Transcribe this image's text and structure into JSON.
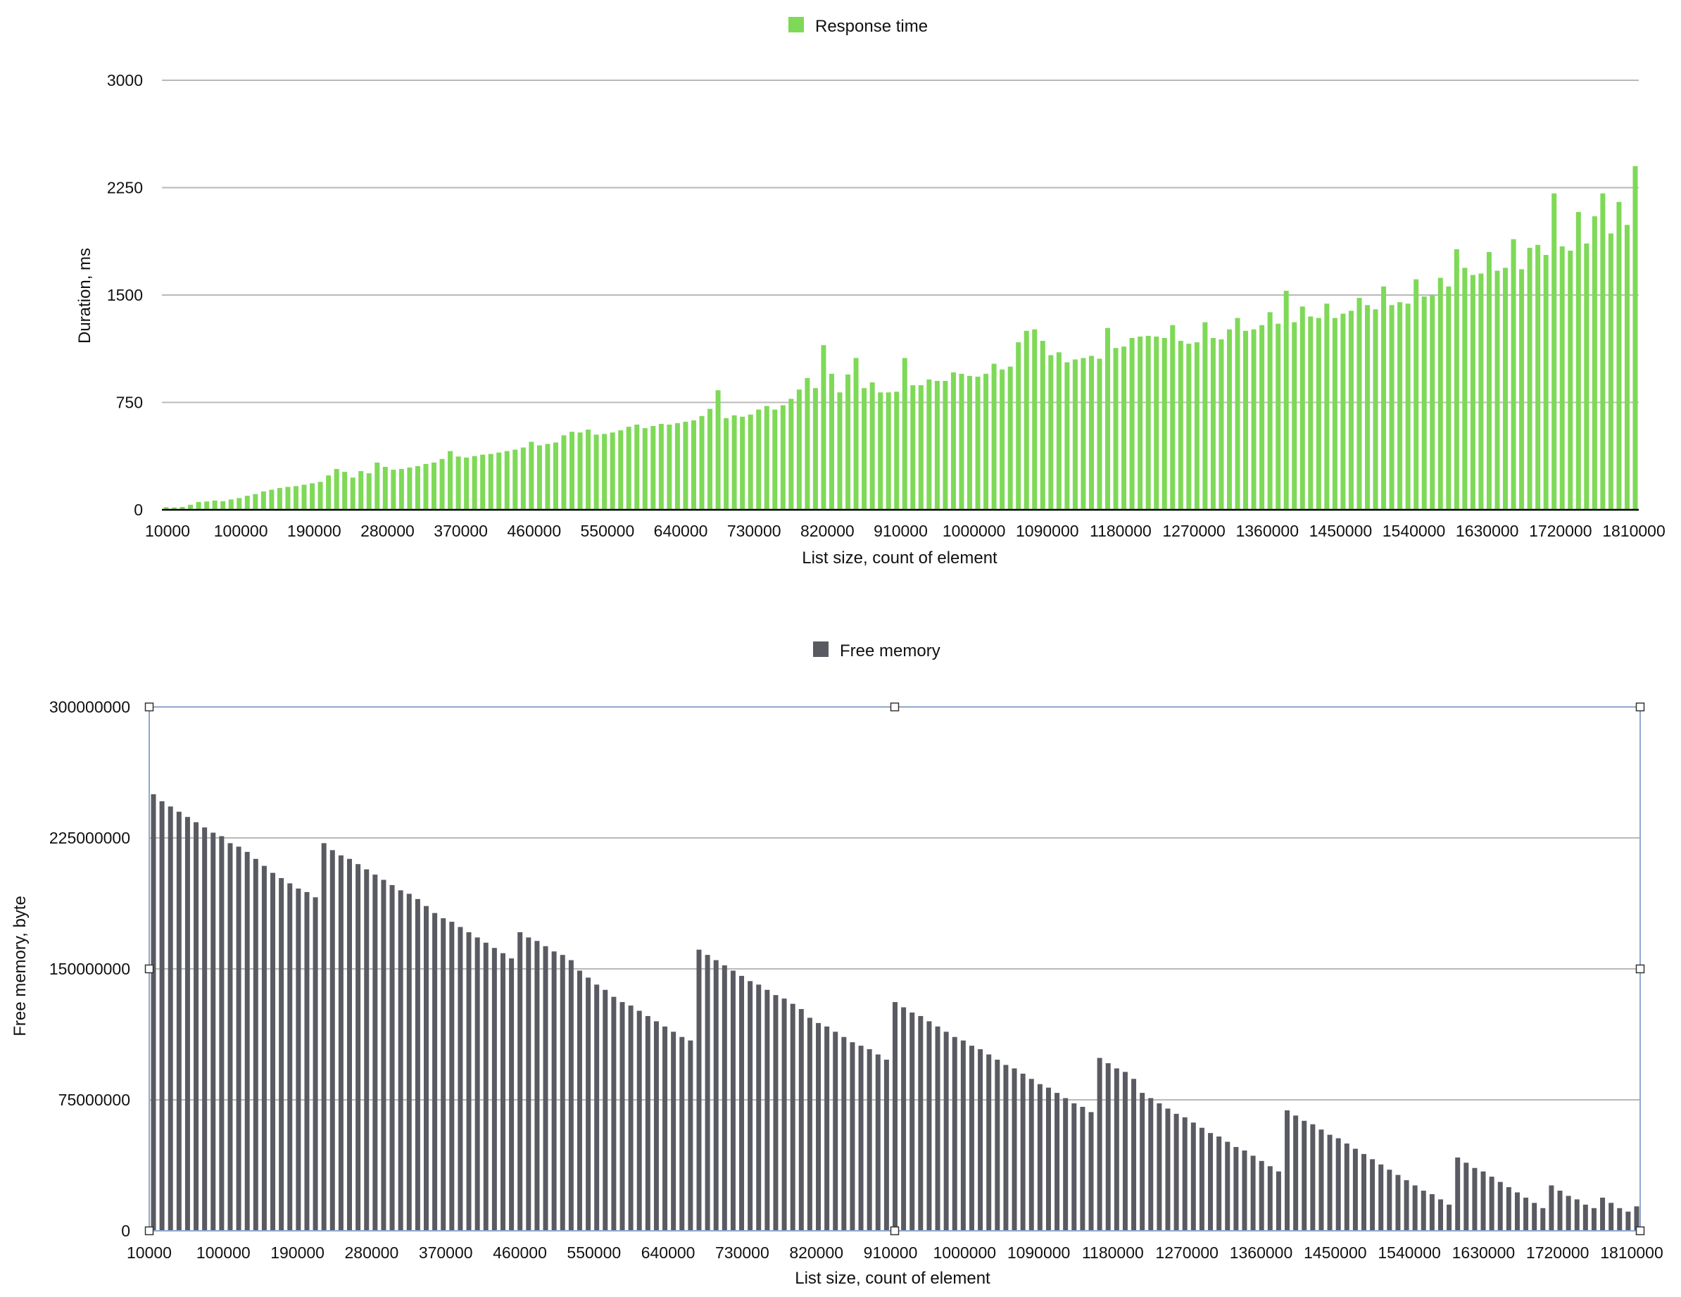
{
  "charts": [
    {
      "type": "bar",
      "legend": "Response time",
      "xlabel": "List size, count of element",
      "ylabel": "Duration, ms",
      "ylim": [
        0,
        3000
      ],
      "yticks": [
        "0",
        "750",
        "1500",
        "2250",
        "3000"
      ],
      "xticks": [
        "10000",
        "100000",
        "190000",
        "280000",
        "370000",
        "460000",
        "550000",
        "640000",
        "730000",
        "820000",
        "910000",
        "1000000",
        "1090000",
        "1180000",
        "1270000",
        "1360000",
        "1450000",
        "1540000",
        "1630000",
        "1720000",
        "1810000"
      ],
      "color": "#7ed957",
      "grid": true,
      "legend_position": "top-center"
    },
    {
      "type": "bar",
      "legend": "Free memory",
      "xlabel": "List size, count of element",
      "ylabel": "Free memory, byte",
      "ylim": [
        0,
        300000000
      ],
      "yticks": [
        "0",
        "75000000",
        "150000000",
        "225000000",
        "300000000"
      ],
      "xticks": [
        "10000",
        "100000",
        "190000",
        "280000",
        "370000",
        "460000",
        "550000",
        "640000",
        "730000",
        "820000",
        "910000",
        "1000000",
        "1090000",
        "1180000",
        "1270000",
        "1360000",
        "1450000",
        "1540000",
        "1630000",
        "1720000",
        "1810000"
      ],
      "color": "#5a5b62",
      "grid": true,
      "legend_position": "top-center",
      "selected": true
    }
  ],
  "chart_data": [
    {
      "type": "bar",
      "title": "",
      "legend": [
        "Response time"
      ],
      "xlabel": "List size, count of element",
      "ylabel": "Duration, ms",
      "ylim": [
        0,
        3000
      ],
      "x_start": 10000,
      "x_step": 10000,
      "series": [
        {
          "name": "Response time",
          "values": [
            18,
            16,
            20,
            35,
            55,
            58,
            65,
            60,
            72,
            82,
            98,
            110,
            128,
            140,
            152,
            160,
            165,
            175,
            185,
            195,
            240,
            285,
            265,
            225,
            270,
            255,
            330,
            300,
            280,
            285,
            295,
            305,
            320,
            330,
            355,
            410,
            372,
            365,
            375,
            385,
            390,
            400,
            410,
            420,
            435,
            475,
            450,
            460,
            470,
            520,
            545,
            540,
            560,
            525,
            530,
            540,
            555,
            580,
            595,
            570,
            585,
            600,
            595,
            605,
            615,
            625,
            655,
            705,
            835,
            640,
            660,
            650,
            665,
            700,
            725,
            700,
            730,
            775,
            840,
            920,
            850,
            1150,
            950,
            820,
            945,
            1060,
            850,
            890,
            820,
            820,
            825,
            1060,
            870,
            870,
            910,
            900,
            900,
            960,
            950,
            935,
            930,
            950,
            1020,
            980,
            1000,
            1170,
            1250,
            1260,
            1180,
            1080,
            1100,
            1030,
            1050,
            1060,
            1075,
            1055,
            1270,
            1130,
            1140,
            1200,
            1210,
            1215,
            1210,
            1200,
            1290,
            1180,
            1160,
            1170,
            1310,
            1200,
            1190,
            1260,
            1340,
            1250,
            1260,
            1290,
            1380,
            1300,
            1530,
            1310,
            1420,
            1350,
            1340,
            1440,
            1340,
            1370,
            1390,
            1480,
            1430,
            1400,
            1560,
            1430,
            1450,
            1440,
            1610,
            1490,
            1500,
            1620,
            1560,
            1820,
            1690,
            1640,
            1650,
            1800,
            1670,
            1690,
            1890,
            1680,
            1830,
            1850,
            1780,
            2210,
            1840,
            1810,
            2080,
            1860,
            2050,
            2210,
            1930,
            2150,
            1990,
            2400
          ]
        }
      ]
    },
    {
      "type": "bar",
      "title": "",
      "legend": [
        "Free memory"
      ],
      "xlabel": "List size, count of element",
      "ylabel": "Free memory, byte",
      "ylim": [
        0,
        300000000
      ],
      "x_start": 10000,
      "x_step": 10000,
      "series": [
        {
          "name": "Free memory",
          "values": [
            250000000,
            246000000,
            243000000,
            240000000,
            237000000,
            234000000,
            231000000,
            228000000,
            226000000,
            222000000,
            220000000,
            217000000,
            213000000,
            209000000,
            205000000,
            202000000,
            199000000,
            196000000,
            194000000,
            191000000,
            222000000,
            218000000,
            215000000,
            213000000,
            210000000,
            207000000,
            204000000,
            201000000,
            198000000,
            195000000,
            193000000,
            190000000,
            186000000,
            182000000,
            179000000,
            177000000,
            174000000,
            171000000,
            168000000,
            165000000,
            162000000,
            159000000,
            156000000,
            171000000,
            168000000,
            166000000,
            163000000,
            160000000,
            158000000,
            155000000,
            149000000,
            145000000,
            141000000,
            138000000,
            134000000,
            131000000,
            129000000,
            126000000,
            123000000,
            120000000,
            117000000,
            114000000,
            111000000,
            109000000,
            161000000,
            158000000,
            155000000,
            152000000,
            149000000,
            146000000,
            143000000,
            141000000,
            138000000,
            135000000,
            133000000,
            130000000,
            127000000,
            122000000,
            119000000,
            117000000,
            114000000,
            111000000,
            108000000,
            106000000,
            104000000,
            101000000,
            98000000,
            131000000,
            128000000,
            125000000,
            123000000,
            120000000,
            117000000,
            114000000,
            111000000,
            109000000,
            106000000,
            104000000,
            101000000,
            98000000,
            95000000,
            93000000,
            90000000,
            87000000,
            84000000,
            82000000,
            79000000,
            76000000,
            73000000,
            71000000,
            68000000,
            99000000,
            96000000,
            93000000,
            91000000,
            87000000,
            79000000,
            76000000,
            73000000,
            70000000,
            67000000,
            65000000,
            62000000,
            59000000,
            56000000,
            54000000,
            51000000,
            48000000,
            46000000,
            43000000,
            40000000,
            37000000,
            34000000,
            69000000,
            66000000,
            63000000,
            61000000,
            58000000,
            55000000,
            53000000,
            50000000,
            47000000,
            44000000,
            41000000,
            38000000,
            35000000,
            32000000,
            29000000,
            26000000,
            23000000,
            21000000,
            18000000,
            15000000,
            42000000,
            39000000,
            36000000,
            34000000,
            31000000,
            28000000,
            25000000,
            22000000,
            19000000,
            16000000,
            13000000,
            26000000,
            23000000,
            20000000,
            18000000,
            15000000,
            13000000,
            19000000,
            16000000,
            13000000,
            11000000,
            14000000
          ]
        }
      ]
    }
  ]
}
